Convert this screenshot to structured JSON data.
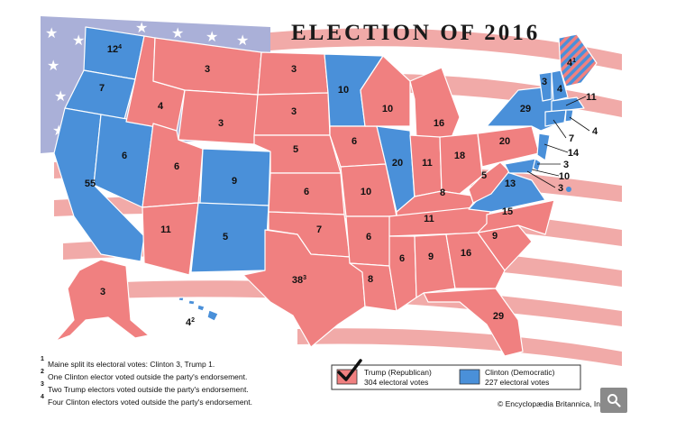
{
  "title": "ELECTION OF 2016",
  "colors": {
    "republican": "#f08080",
    "democratic": "#4a90d9",
    "flag_stripe_red": "#f1aaa8",
    "flag_canton": "#aab0d8",
    "border": "#ffffff"
  },
  "labels": [
    {
      "state": "Washington",
      "value": "12",
      "sup": "4",
      "party": "D"
    },
    {
      "state": "Oregon",
      "value": "7",
      "party": "D"
    },
    {
      "state": "California",
      "value": "55",
      "party": "D"
    },
    {
      "state": "Nevada",
      "value": "6",
      "party": "D"
    },
    {
      "state": "Idaho",
      "value": "4",
      "party": "R"
    },
    {
      "state": "Montana",
      "value": "3",
      "party": "R"
    },
    {
      "state": "Wyoming",
      "value": "3",
      "party": "R"
    },
    {
      "state": "Utah",
      "value": "6",
      "party": "R"
    },
    {
      "state": "Arizona",
      "value": "11",
      "party": "R"
    },
    {
      "state": "Colorado",
      "value": "9",
      "party": "D"
    },
    {
      "state": "New Mexico",
      "value": "5",
      "party": "D"
    },
    {
      "state": "North Dakota",
      "value": "3",
      "party": "R"
    },
    {
      "state": "South Dakota",
      "value": "3",
      "party": "R"
    },
    {
      "state": "Nebraska",
      "value": "5",
      "party": "R"
    },
    {
      "state": "Kansas",
      "value": "6",
      "party": "R"
    },
    {
      "state": "Oklahoma",
      "value": "7",
      "party": "R"
    },
    {
      "state": "Texas",
      "value": "38",
      "sup": "3",
      "party": "R"
    },
    {
      "state": "Minnesota",
      "value": "10",
      "party": "D"
    },
    {
      "state": "Iowa",
      "value": "6",
      "party": "R"
    },
    {
      "state": "Missouri",
      "value": "10",
      "party": "R"
    },
    {
      "state": "Arkansas",
      "value": "6",
      "party": "R"
    },
    {
      "state": "Louisiana",
      "value": "8",
      "party": "R"
    },
    {
      "state": "Wisconsin",
      "value": "10",
      "party": "R"
    },
    {
      "state": "Illinois",
      "value": "20",
      "party": "D"
    },
    {
      "state": "Michigan",
      "value": "16",
      "party": "R"
    },
    {
      "state": "Indiana",
      "value": "11",
      "party": "R"
    },
    {
      "state": "Ohio",
      "value": "18",
      "party": "R"
    },
    {
      "state": "Kentucky",
      "value": "8",
      "party": "R"
    },
    {
      "state": "Tennessee",
      "value": "11",
      "party": "R"
    },
    {
      "state": "Mississippi",
      "value": "6",
      "party": "R"
    },
    {
      "state": "Alabama",
      "value": "9",
      "party": "R"
    },
    {
      "state": "Georgia",
      "value": "16",
      "party": "R"
    },
    {
      "state": "Florida",
      "value": "29",
      "party": "R"
    },
    {
      "state": "South Carolina",
      "value": "9",
      "party": "R"
    },
    {
      "state": "North Carolina",
      "value": "15",
      "party": "R"
    },
    {
      "state": "Virginia",
      "value": "13",
      "party": "D"
    },
    {
      "state": "West Virginia",
      "value": "5",
      "party": "R"
    },
    {
      "state": "Pennsylvania",
      "value": "20",
      "party": "R"
    },
    {
      "state": "New York",
      "value": "29",
      "party": "D"
    },
    {
      "state": "Vermont",
      "value": "3",
      "party": "D"
    },
    {
      "state": "New Hampshire",
      "value": "4",
      "party": "D"
    },
    {
      "state": "Maine",
      "value": "4",
      "sup": "1",
      "party": "split"
    },
    {
      "state": "Alaska",
      "value": "3",
      "party": "R"
    },
    {
      "state": "Hawaii",
      "value": "4",
      "sup": "2",
      "party": "D"
    }
  ],
  "callouts": [
    {
      "state": "Massachusetts",
      "value": "11"
    },
    {
      "state": "Rhode Island",
      "value": "4"
    },
    {
      "state": "Connecticut",
      "value": "7"
    },
    {
      "state": "New Jersey",
      "value": "14"
    },
    {
      "state": "Delaware",
      "value": "3"
    },
    {
      "state": "Maryland",
      "value": "10"
    },
    {
      "state": "District of Columbia",
      "value": "3"
    }
  ],
  "footnotes": [
    {
      "num": "1",
      "text": "Maine split its electoral votes: Clinton 3, Trump 1."
    },
    {
      "num": "2",
      "text": "One Clinton elector voted outside the party's endorsement."
    },
    {
      "num": "3",
      "text": "Two Trump electors voted outside the party's endorsement."
    },
    {
      "num": "4",
      "text": "Four Clinton electors voted outside the party's endorsement."
    }
  ],
  "legend": {
    "trump_name": "Trump (Republican)",
    "trump_votes": "304 electoral votes",
    "clinton_name": "Clinton (Democratic)",
    "clinton_votes": "227 electoral votes"
  },
  "credit": "© Encyclopædia Britannica, Inc.",
  "zoom_icon": "magnifier-icon"
}
